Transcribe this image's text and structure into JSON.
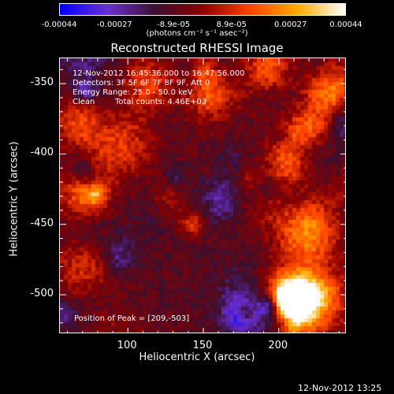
{
  "chart_data": {
    "type": "heatmap",
    "title": "Reconstructed RHESSI Image",
    "xlabel": "Heliocentric X (arcsec)",
    "ylabel": "Heliocentric Y (arcsec)",
    "xlim": [
      55,
      245
    ],
    "ylim": [
      -528,
      -332
    ],
    "xticks": [
      "100",
      "150",
      "200"
    ],
    "xtick_values": [
      100,
      150,
      200
    ],
    "yticks": [
      "-350",
      "-400",
      "-450",
      "-500"
    ],
    "ytick_values": [
      -350,
      -400,
      -450,
      -500
    ],
    "colorbar": {
      "ticks": [
        "-0.00044",
        "-0.00027",
        "-8.9e-05",
        "8.9e-05",
        "0.00027",
        "0.00044"
      ],
      "tick_values": [
        -0.00044,
        -0.00027,
        -8.9e-05,
        8.9e-05,
        0.00027,
        0.00044
      ],
      "label": "(photons cm⁻² s⁻¹ asec⁻²)",
      "colors": [
        "#0000ff",
        "#6a2fd0",
        "#3a1030",
        "#8a0000",
        "#ff4400",
        "#ffaa00",
        "#ffffff"
      ]
    },
    "annotations": {
      "time_range": "12-Nov-2012 16:45:36.000 to 16:47:56.000",
      "detectors": "Detectors: 3F 5F 6F 7F 8F 9F, Att 0",
      "energy": "Energy Range: 25.0 - 50.0 keV",
      "clean_label": "Clean",
      "total_counts": "Total counts: 4.46E+03",
      "peak": "Position of Peak = [209,-503]"
    },
    "peak_position": [
      209,
      -503
    ],
    "peak_value": 0.00044
  },
  "timestamp": "12-Nov-2012 13:25"
}
